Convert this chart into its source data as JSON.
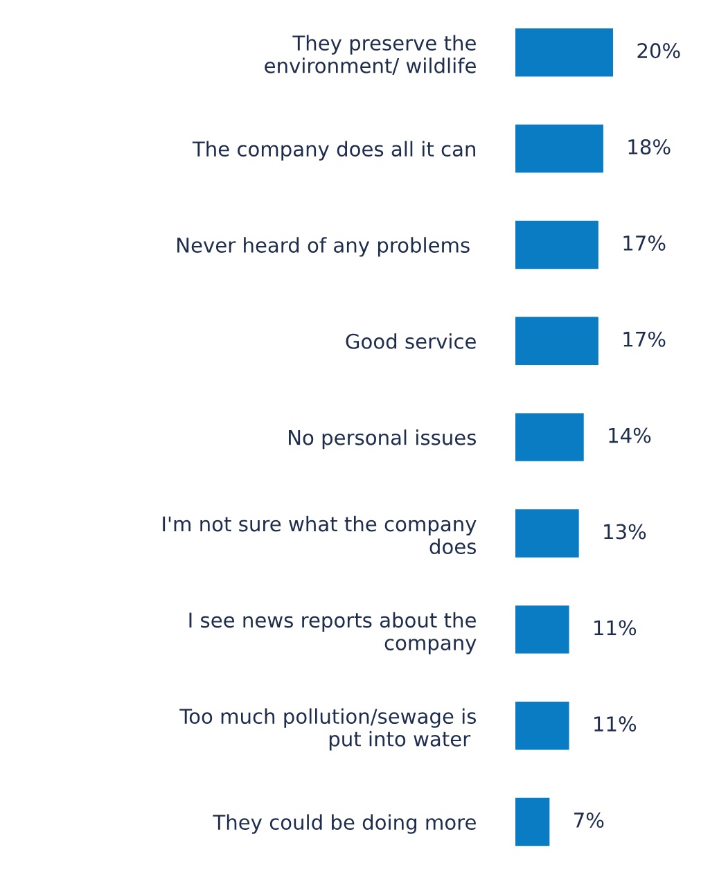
{
  "chart_data": {
    "type": "bar",
    "orientation": "horizontal",
    "categories": [
      "They preserve the\nenvironment/ wildlife",
      "The company does all it can",
      "Never heard of any problems ",
      "Good service",
      "No personal issues",
      "I'm not sure what the company\ndoes",
      "I see news reports about the\ncompany",
      "Too much pollution/sewage is\nput into water ",
      "They could be doing more"
    ],
    "values": [
      20,
      18,
      17,
      17,
      14,
      13,
      11,
      11,
      7
    ],
    "value_labels": [
      "20%",
      "18%",
      "17%",
      "17%",
      "14%",
      "13%",
      "11%",
      "11%",
      "7%"
    ],
    "color": "#0a7cc4",
    "grid": false,
    "legend": false
  }
}
